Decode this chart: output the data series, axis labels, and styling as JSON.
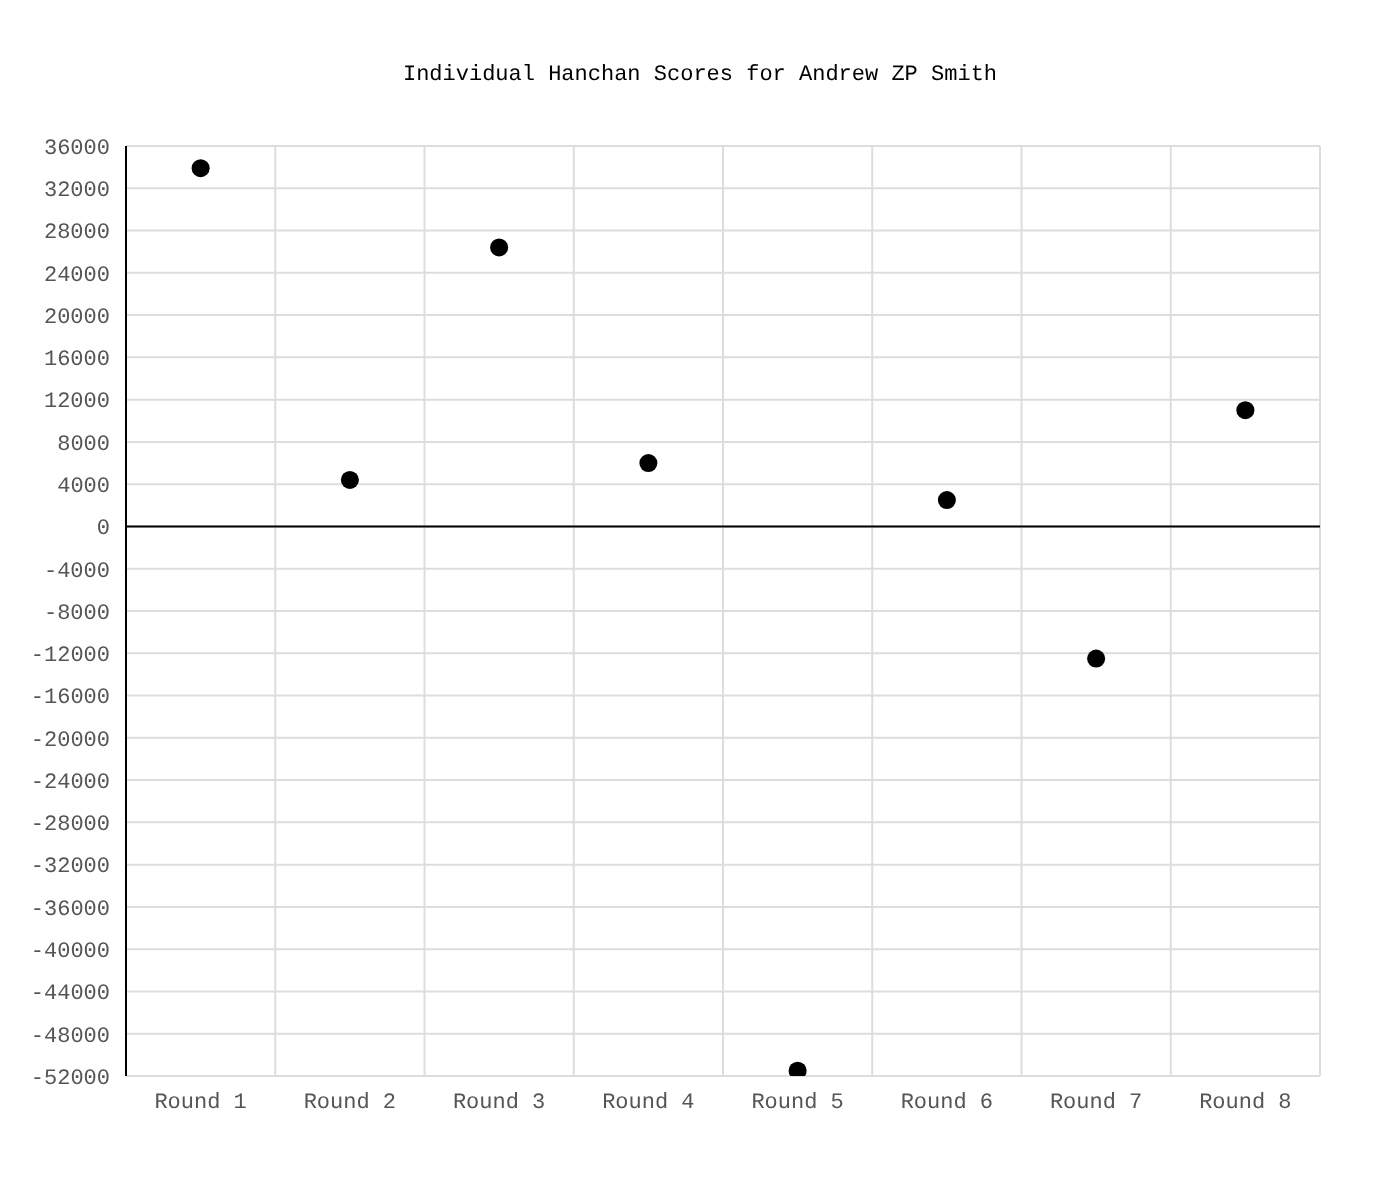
{
  "chart_data": {
    "type": "scatter",
    "title": "Individual Hanchan Scores for Andrew ZP Smith",
    "categories": [
      "Round 1",
      "Round 2",
      "Round 3",
      "Round 4",
      "Round 5",
      "Round 6",
      "Round 7",
      "Round 8"
    ],
    "values": [
      33900,
      4400,
      26400,
      6000,
      -51500,
      2500,
      -12500,
      11000
    ],
    "color": "#000000",
    "marker": "circle",
    "ylim": [
      -52000,
      36000
    ],
    "yticks": [
      -52000,
      -48000,
      -44000,
      -40000,
      -36000,
      -32000,
      -28000,
      -24000,
      -20000,
      -16000,
      -12000,
      -8000,
      -4000,
      0,
      4000,
      8000,
      12000,
      16000,
      20000,
      24000,
      28000,
      32000,
      36000
    ],
    "ref_lines": [
      {
        "axis": "y",
        "value": 0,
        "color": "#000000"
      }
    ],
    "grid": true,
    "legend": false
  }
}
